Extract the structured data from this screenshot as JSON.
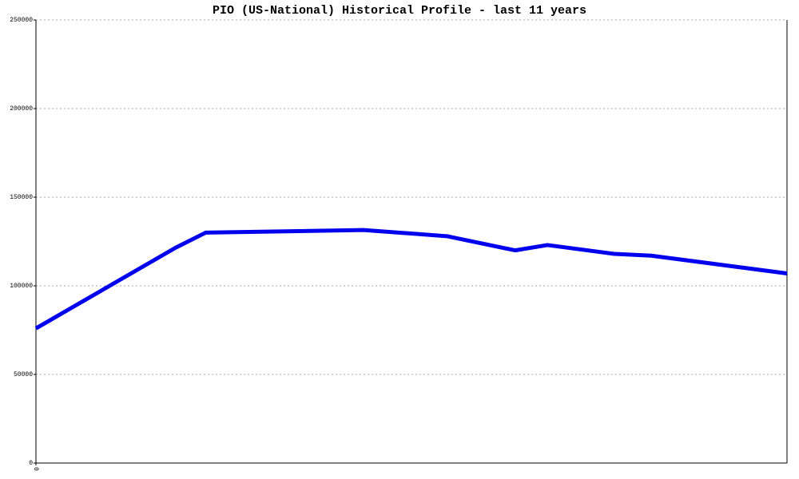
{
  "chart_data": {
    "type": "line",
    "title": "PIO (US-National) Historical Profile - last 11 years",
    "x": [
      0,
      18.6,
      22.6,
      30,
      43.6,
      54.7,
      63.8,
      68.1,
      77,
      81.9,
      100
    ],
    "series": [
      {
        "name": "PIO",
        "color": "#0000ee",
        "values": [
          76000,
          121500,
          130000,
          130500,
          131500,
          128000,
          120000,
          123000,
          118000,
          117000,
          107000
        ]
      }
    ],
    "xlim": [
      0,
      100
    ],
    "xticks": [
      0
    ],
    "ylim": [
      0,
      250000
    ],
    "yticks": [
      0,
      50000,
      100000,
      150000,
      200000,
      250000
    ],
    "grid": true
  }
}
